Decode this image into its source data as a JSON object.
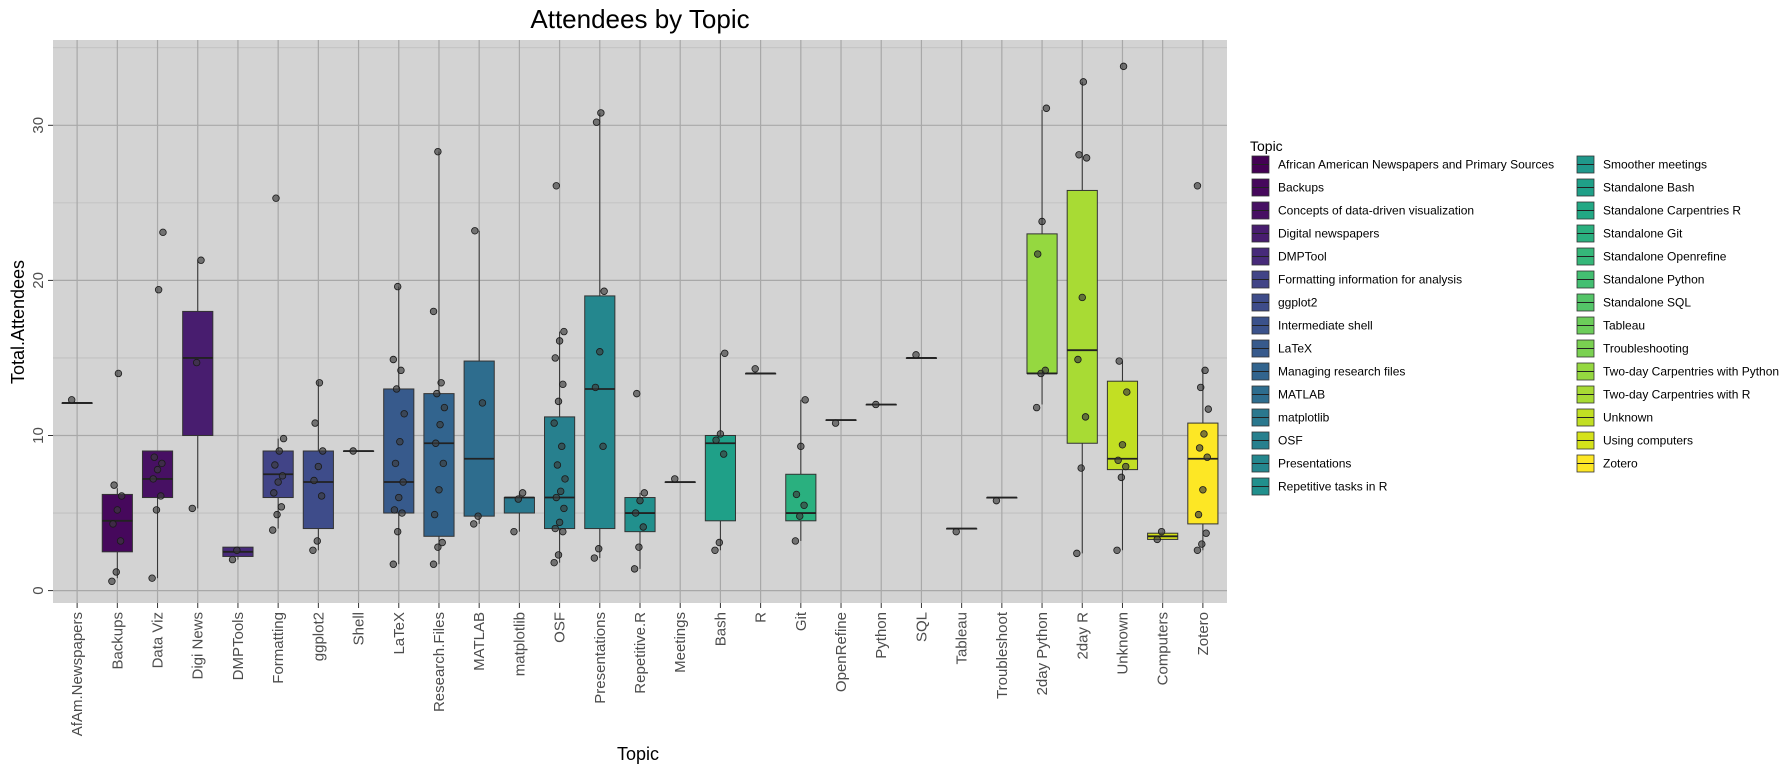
{
  "chart_data": {
    "type": "box",
    "title": "Attendees by Topic",
    "xlabel": "Topic",
    "ylabel": "Total.Attendees",
    "ylim": [
      -0.8,
      35.5
    ],
    "yticks": [
      0,
      10,
      20,
      30
    ],
    "grid": true,
    "background": "#d3d3d3",
    "legend_title": "Topic",
    "legend_position": "right",
    "legend": [
      {
        "label": "African American Newspapers and Primary Sources",
        "color": "#440154"
      },
      {
        "label": "Backups",
        "color": "#46085c"
      },
      {
        "label": "Concepts of data-driven visualization",
        "color": "#471063"
      },
      {
        "label": "Digital newspapers",
        "color": "#481d6f"
      },
      {
        "label": "DMPTool",
        "color": "#472a7a"
      },
      {
        "label": "Formatting information for analysis",
        "color": "#414487"
      },
      {
        "label": "ggplot2",
        "color": "#3e4c8a"
      },
      {
        "label": "Intermediate shell",
        "color": "#3b528b"
      },
      {
        "label": "LaTeX",
        "color": "#375a8c"
      },
      {
        "label": "Managing research files",
        "color": "#32648e"
      },
      {
        "label": "MATLAB",
        "color": "#2e6d8e"
      },
      {
        "label": "matplotlib",
        "color": "#2a788e"
      },
      {
        "label": "OSF",
        "color": "#27808e"
      },
      {
        "label": "Presentations",
        "color": "#24878e"
      },
      {
        "label": "Repetitive tasks in R",
        "color": "#21908d"
      },
      {
        "label": "Smoother meetings",
        "color": "#1f988b"
      },
      {
        "label": "Standalone Bash",
        "color": "#1fa088"
      },
      {
        "label": "Standalone Carpentries R",
        "color": "#22a884"
      },
      {
        "label": "Standalone Git",
        "color": "#2ab07f"
      },
      {
        "label": "Standalone Openrefine",
        "color": "#35b779"
      },
      {
        "label": "Standalone Python",
        "color": "#43bf71"
      },
      {
        "label": "Standalone SQL",
        "color": "#54c568"
      },
      {
        "label": "Tableau",
        "color": "#6ccd5a"
      },
      {
        "label": "Troubleshooting",
        "color": "#7ad151"
      },
      {
        "label": "Two-day Carpentries with Python",
        "color": "#95d840"
      },
      {
        "label": "Two-day Carpentries with R",
        "color": "#a8db34"
      },
      {
        "label": "Unknown",
        "color": "#c2df23"
      },
      {
        "label": "Using computers",
        "color": "#d5e21a"
      },
      {
        "label": "Zotero",
        "color": "#fde725"
      }
    ],
    "boxes": [
      {
        "category": "AfAm.Newspapers",
        "q1": 12.1,
        "median": 12.1,
        "q3": 12.1,
        "wlo": 12.1,
        "whi": 12.1,
        "points": [
          12.3
        ],
        "color": "#440154"
      },
      {
        "category": "Backups",
        "q1": 2.5,
        "median": 4.5,
        "q3": 6.2,
        "wlo": 0.8,
        "whi": 6.6,
        "points": [
          0.6,
          1.2,
          3.2,
          4.3,
          5.2,
          6.1,
          6.8,
          14.0
        ],
        "color": "#46085c"
      },
      {
        "category": "Data Viz",
        "q1": 6.0,
        "median": 7.2,
        "q3": 9.0,
        "wlo": 0.8,
        "whi": 9.0,
        "points": [
          0.8,
          5.2,
          6.1,
          7.2,
          7.8,
          8.2,
          8.6,
          19.4,
          23.1
        ],
        "color": "#471063"
      },
      {
        "category": "Digi News",
        "q1": 10.0,
        "median": 15.0,
        "q3": 18.0,
        "wlo": 5.3,
        "whi": 21.3,
        "points": [
          5.3,
          14.7,
          21.3
        ],
        "color": "#481d6f"
      },
      {
        "category": "DMPTools",
        "q1": 2.2,
        "median": 2.5,
        "q3": 2.8,
        "wlo": 2.0,
        "whi": 2.8,
        "points": [
          2.0,
          2.6
        ],
        "color": "#472a7a"
      },
      {
        "category": "Formatting",
        "q1": 6.0,
        "median": 7.5,
        "q3": 9.0,
        "wlo": 4.0,
        "whi": 9.8,
        "points": [
          3.9,
          4.9,
          5.4,
          6.3,
          7.0,
          7.4,
          8.1,
          9.0,
          9.8,
          25.3
        ],
        "color": "#414487"
      },
      {
        "category": "ggplot2",
        "q1": 4.0,
        "median": 7.0,
        "q3": 9.0,
        "wlo": 2.6,
        "whi": 13.5,
        "points": [
          2.6,
          3.2,
          6.1,
          7.1,
          8.0,
          9.0,
          10.8,
          13.4
        ],
        "color": "#3e4c8a"
      },
      {
        "category": "Shell",
        "q1": 9.0,
        "median": 9.0,
        "q3": 9.0,
        "wlo": 9.0,
        "whi": 9.0,
        "points": [
          9.0
        ],
        "color": "#3b528b"
      },
      {
        "category": "LaTeX",
        "q1": 5.0,
        "median": 7.0,
        "q3": 13.0,
        "wlo": 1.7,
        "whi": 19.6,
        "points": [
          1.7,
          3.8,
          5.0,
          5.2,
          6.0,
          7.0,
          8.2,
          9.6,
          11.4,
          13.0,
          14.2,
          14.9,
          19.6
        ],
        "color": "#375a8c"
      },
      {
        "category": "Research.Files",
        "q1": 3.5,
        "median": 9.5,
        "q3": 12.7,
        "wlo": 1.7,
        "whi": 28.3,
        "points": [
          1.7,
          2.8,
          3.1,
          4.9,
          6.5,
          8.2,
          9.5,
          10.7,
          11.8,
          12.7,
          13.4,
          18.0,
          28.3
        ],
        "color": "#32648e"
      },
      {
        "category": "MATLAB",
        "q1": 4.8,
        "median": 8.5,
        "q3": 14.8,
        "wlo": 4.3,
        "whi": 23.2,
        "points": [
          4.3,
          4.8,
          12.1,
          23.2
        ],
        "color": "#2e6d8e"
      },
      {
        "category": "matplotlib",
        "q1": 5.0,
        "median": 6.0,
        "q3": 6.0,
        "wlo": 3.8,
        "whi": 6.3,
        "points": [
          3.8,
          5.9,
          6.3
        ],
        "color": "#2a788e"
      },
      {
        "category": "OSF",
        "q1": 4.0,
        "median": 6.0,
        "q3": 11.2,
        "wlo": 1.8,
        "whi": 16.7,
        "points": [
          1.8,
          2.3,
          3.8,
          4.0,
          4.4,
          5.3,
          6.0,
          6.4,
          7.2,
          8.1,
          9.3,
          10.8,
          12.2,
          13.3,
          15.0,
          16.1,
          16.7,
          26.1
        ],
        "color": "#27808e"
      },
      {
        "category": "Presentations",
        "q1": 4.0,
        "median": 13.0,
        "q3": 19.0,
        "wlo": 2.1,
        "whi": 30.8,
        "points": [
          2.1,
          2.7,
          9.3,
          13.1,
          15.4,
          19.3,
          30.2,
          30.8
        ],
        "color": "#24878e"
      },
      {
        "category": "Repetitive.R",
        "q1": 3.8,
        "median": 5.0,
        "q3": 6.0,
        "wlo": 1.4,
        "whi": 6.3,
        "points": [
          1.4,
          2.8,
          4.1,
          5.0,
          5.8,
          6.3,
          12.7
        ],
        "color": "#21908d"
      },
      {
        "category": "Meetings",
        "q1": 7.0,
        "median": 7.0,
        "q3": 7.0,
        "wlo": 7.0,
        "whi": 7.0,
        "points": [
          7.2
        ],
        "color": "#1f988b"
      },
      {
        "category": "Bash",
        "q1": 4.5,
        "median": 9.5,
        "q3": 10.0,
        "wlo": 2.6,
        "whi": 15.3,
        "points": [
          2.6,
          3.1,
          8.8,
          9.7,
          10.1,
          15.3
        ],
        "color": "#1fa088"
      },
      {
        "category": "R",
        "q1": 14.0,
        "median": 14.0,
        "q3": 14.0,
        "wlo": 14.0,
        "whi": 14.0,
        "points": [
          14.3
        ],
        "color": "#22a884"
      },
      {
        "category": "Git",
        "q1": 4.5,
        "median": 5.0,
        "q3": 7.5,
        "wlo": 3.2,
        "whi": 12.3,
        "points": [
          3.2,
          4.8,
          5.5,
          6.2,
          9.3,
          12.3
        ],
        "color": "#2ab07f"
      },
      {
        "category": "OpenRefine",
        "q1": 11.0,
        "median": 11.0,
        "q3": 11.0,
        "wlo": 11.0,
        "whi": 11.0,
        "points": [
          10.8
        ],
        "color": "#35b779"
      },
      {
        "category": "Python",
        "q1": 12.0,
        "median": 12.0,
        "q3": 12.0,
        "wlo": 12.0,
        "whi": 12.0,
        "points": [
          12.0
        ],
        "color": "#43bf71"
      },
      {
        "category": "SQL",
        "q1": 15.0,
        "median": 15.0,
        "q3": 15.0,
        "wlo": 15.0,
        "whi": 15.0,
        "points": [
          15.2
        ],
        "color": "#54c568"
      },
      {
        "category": "Tableau",
        "q1": 4.0,
        "median": 4.0,
        "q3": 4.0,
        "wlo": 4.0,
        "whi": 4.0,
        "points": [
          3.8
        ],
        "color": "#6ccd5a"
      },
      {
        "category": "Troubleshoot",
        "q1": 6.0,
        "median": 6.0,
        "q3": 6.0,
        "wlo": 6.0,
        "whi": 6.0,
        "points": [
          5.8
        ],
        "color": "#7ad151"
      },
      {
        "category": "2day Python",
        "q1": 14.0,
        "median": 14.0,
        "q3": 23.0,
        "wlo": 12.0,
        "whi": 31.0,
        "points": [
          11.8,
          14.0,
          14.2,
          21.7,
          23.8,
          31.1
        ],
        "color": "#95d840"
      },
      {
        "category": "2day R",
        "q1": 9.5,
        "median": 15.5,
        "q3": 25.8,
        "wlo": 2.4,
        "whi": 32.8,
        "points": [
          2.4,
          7.9,
          11.2,
          14.9,
          18.9,
          27.9,
          28.1,
          32.8
        ],
        "color": "#a8db34"
      },
      {
        "category": "Unknown",
        "q1": 7.8,
        "median": 8.5,
        "q3": 13.5,
        "wlo": 2.6,
        "whi": 14.8,
        "points": [
          2.6,
          7.3,
          8.0,
          8.4,
          9.4,
          12.8,
          14.8,
          33.8
        ],
        "color": "#c2df23"
      },
      {
        "category": "Computers",
        "q1": 3.3,
        "median": 3.5,
        "q3": 3.7,
        "wlo": 3.3,
        "whi": 3.7,
        "points": [
          3.3,
          3.8
        ],
        "color": "#d5e21a"
      },
      {
        "category": "Zotero",
        "q1": 4.3,
        "median": 8.5,
        "q3": 10.8,
        "wlo": 2.6,
        "whi": 14.3,
        "points": [
          2.6,
          3.0,
          3.7,
          4.9,
          6.5,
          8.6,
          9.2,
          10.1,
          11.7,
          13.1,
          14.2,
          26.1
        ],
        "color": "#fde725"
      }
    ]
  }
}
